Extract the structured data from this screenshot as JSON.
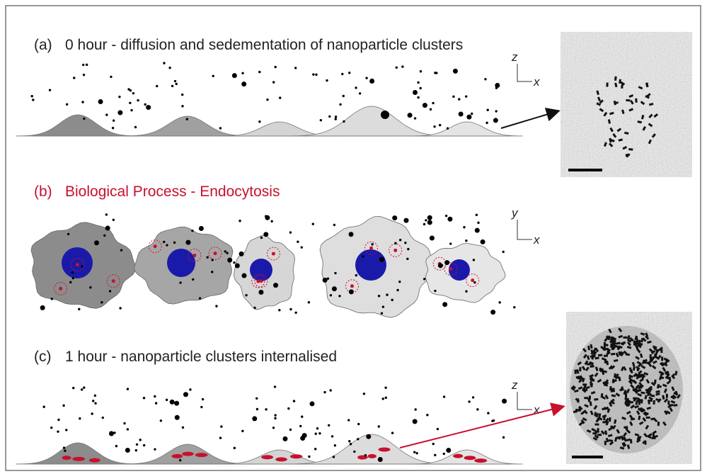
{
  "panels": [
    {
      "label": "(a)",
      "title": "0 hour - diffusion and sedementation of nanoparticle clusters",
      "axis_vertical": "z",
      "axis_horizontal": "x"
    },
    {
      "label": "(b)",
      "title": "Biological Process - Endocytosis",
      "axis_vertical": "y",
      "axis_horizontal": "x"
    },
    {
      "label": "(c)",
      "title": "1 hour - nanoparticle clusters internalised",
      "axis_vertical": "z",
      "axis_horizontal": "x"
    }
  ]
}
